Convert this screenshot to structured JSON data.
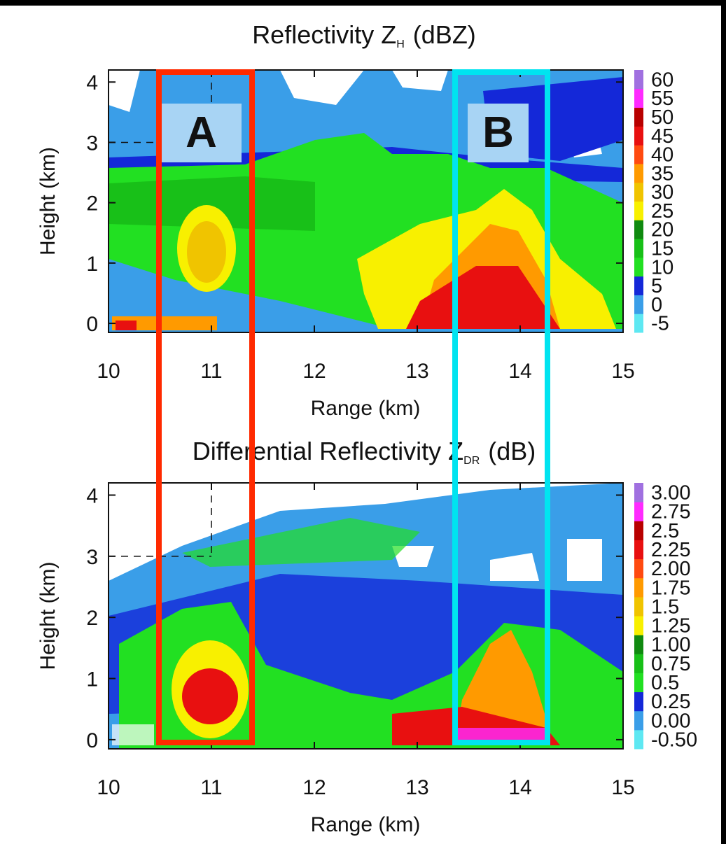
{
  "chart_data": [
    {
      "type": "heatmap",
      "title": {
        "text": "Reflectivity Z",
        "subscript": "H",
        "unit": "(dBZ)"
      },
      "xlabel": "Range (km)",
      "ylabel": "Height (km)",
      "xlim": [
        10,
        15
      ],
      "xticks": [
        10,
        11,
        12,
        13,
        14,
        15
      ],
      "ylim": [
        -0.15,
        4.2
      ],
      "yticks": [
        0,
        1,
        2,
        3,
        4
      ],
      "colorbar": {
        "ticks": [
          -5,
          0,
          5,
          10,
          15,
          20,
          25,
          30,
          35,
          40,
          45,
          50,
          55,
          60
        ],
        "colors": [
          "#5ee8f2",
          "#3a9ee8",
          "#1428d8",
          "#22e022",
          "#18c018",
          "#108a10",
          "#f8f000",
          "#f0c400",
          "#ff9a00",
          "#ff4a10",
          "#e81010",
          "#b80000",
          "#ff2aff",
          "#a070e0"
        ]
      }
    },
    {
      "type": "heatmap",
      "title": {
        "text": "Differential Reflectivity Z",
        "subscript": "DR",
        "unit": "(dB)"
      },
      "xlabel": "Range (km)",
      "ylabel": "Height (km)",
      "xlim": [
        10,
        15
      ],
      "xticks": [
        10,
        11,
        12,
        13,
        14,
        15
      ],
      "ylim": [
        -0.15,
        4.2
      ],
      "yticks": [
        0,
        1,
        2,
        3,
        4
      ],
      "colorbar": {
        "ticks": [
          {
            "value": -0.5,
            "label": "-0.50"
          },
          {
            "value": 0,
            "label": "0.00"
          },
          0.25,
          0.5,
          0.75,
          {
            "value": 1,
            "label": "1.00"
          },
          1.25,
          1.5,
          1.75,
          {
            "value": 2,
            "label": "2.00"
          },
          2.25,
          2.5,
          2.75,
          {
            "value": 3,
            "label": "3.00"
          }
        ],
        "colors": [
          "#5ee8f2",
          "#3a9ee8",
          "#1428d8",
          "#22e022",
          "#18c018",
          "#108a10",
          "#f8f000",
          "#f0c400",
          "#ff9a00",
          "#ff4a10",
          "#e81010",
          "#b80000",
          "#ff2aff",
          "#a070e0"
        ]
      }
    }
  ],
  "annotations": [
    {
      "label": "A",
      "color": "#ff2a00"
    },
    {
      "label": "B",
      "color": "#00e4f0"
    }
  ]
}
